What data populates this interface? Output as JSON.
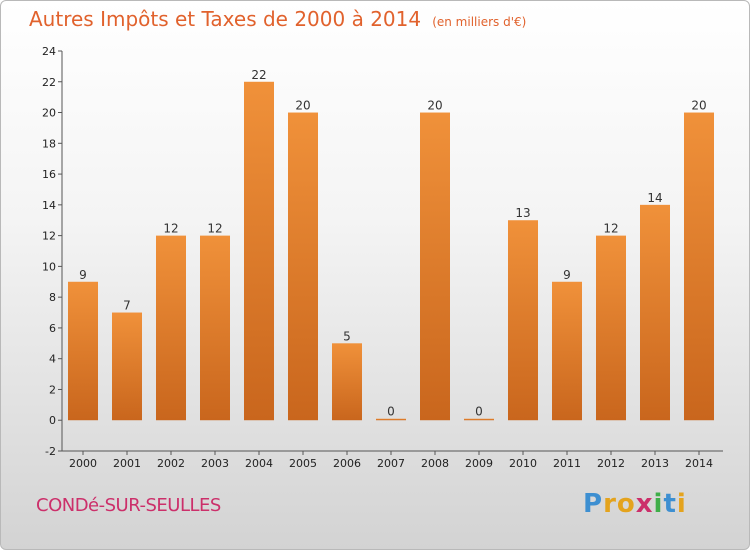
{
  "chart_data": {
    "type": "bar",
    "title": "Autres Impôts et Taxes de 2000 à 2014",
    "unit": "(en milliers d'€)",
    "categories": [
      "2000",
      "2001",
      "2002",
      "2003",
      "2004",
      "2005",
      "2006",
      "2007",
      "2008",
      "2009",
      "2010",
      "2011",
      "2012",
      "2013",
      "2014"
    ],
    "values": [
      9,
      7,
      12,
      12,
      22,
      20,
      5,
      0,
      20,
      0,
      13,
      9,
      12,
      14,
      20
    ],
    "ylim": [
      -2,
      24
    ],
    "yticks": [
      -2,
      0,
      2,
      4,
      6,
      8,
      10,
      12,
      14,
      16,
      18,
      20,
      22,
      24
    ],
    "grid": false,
    "xlabel": "",
    "ylabel": "",
    "bar_color": "#f0913a",
    "bar_color_dark": "#c9661d"
  },
  "commune": "CONDé-SUR-SEULLES",
  "logo": {
    "letters": [
      "P",
      "r",
      "o",
      "x",
      "i",
      "t",
      "i"
    ],
    "colors": [
      "#3d8fd1",
      "#e4a31d",
      "#e4a31d",
      "#cc2f6a",
      "#3fae49",
      "#3d8fd1",
      "#e4a31d"
    ]
  }
}
